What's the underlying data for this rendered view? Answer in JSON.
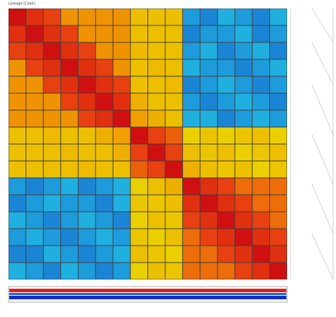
{
  "chart_data": {
    "type": "heatmap",
    "title": "Linkage (Color)",
    "colorscale": [
      [
        0,
        "#1030c0"
      ],
      [
        0.3,
        "#20b0e0"
      ],
      [
        0.5,
        "#e8e000"
      ],
      [
        0.7,
        "#f0a000"
      ],
      [
        0.85,
        "#e84010"
      ],
      [
        1,
        "#d01010"
      ]
    ],
    "values": [
      [
        1,
        0.9,
        0.85,
        0.72,
        0.72,
        0.72,
        0.72,
        0.6,
        0.6,
        0.6,
        0.25,
        0.2,
        0.3,
        0.25,
        0.2,
        0.3
      ],
      [
        0.9,
        1,
        0.9,
        0.85,
        0.72,
        0.72,
        0.72,
        0.6,
        0.6,
        0.6,
        0.2,
        0.25,
        0.25,
        0.3,
        0.2,
        0.25
      ],
      [
        0.85,
        0.9,
        1,
        0.9,
        0.85,
        0.72,
        0.72,
        0.62,
        0.6,
        0.6,
        0.25,
        0.3,
        0.2,
        0.25,
        0.3,
        0.2
      ],
      [
        0.72,
        0.85,
        0.9,
        1,
        0.9,
        0.85,
        0.72,
        0.6,
        0.62,
        0.6,
        0.3,
        0.25,
        0.25,
        0.2,
        0.25,
        0.3
      ],
      [
        0.72,
        0.72,
        0.85,
        0.9,
        1,
        0.9,
        0.85,
        0.6,
        0.6,
        0.62,
        0.2,
        0.25,
        0.3,
        0.25,
        0.2,
        0.25
      ],
      [
        0.72,
        0.72,
        0.72,
        0.85,
        0.9,
        1,
        0.9,
        0.65,
        0.6,
        0.6,
        0.25,
        0.2,
        0.25,
        0.3,
        0.25,
        0.2
      ],
      [
        0.72,
        0.72,
        0.72,
        0.72,
        0.85,
        0.9,
        1,
        0.7,
        0.65,
        0.6,
        0.3,
        0.3,
        0.2,
        0.25,
        0.3,
        0.25
      ],
      [
        0.6,
        0.6,
        0.62,
        0.6,
        0.6,
        0.65,
        0.7,
        1,
        0.85,
        0.8,
        0.55,
        0.58,
        0.55,
        0.58,
        0.6,
        0.55
      ],
      [
        0.6,
        0.6,
        0.6,
        0.62,
        0.6,
        0.6,
        0.65,
        0.85,
        1,
        0.85,
        0.6,
        0.58,
        0.6,
        0.55,
        0.58,
        0.6
      ],
      [
        0.6,
        0.6,
        0.6,
        0.6,
        0.62,
        0.6,
        0.6,
        0.8,
        0.85,
        1,
        0.65,
        0.6,
        0.58,
        0.6,
        0.55,
        0.58
      ],
      [
        0.25,
        0.2,
        0.25,
        0.3,
        0.2,
        0.25,
        0.3,
        0.55,
        0.6,
        0.65,
        1,
        0.9,
        0.85,
        0.78,
        0.78,
        0.78
      ],
      [
        0.2,
        0.25,
        0.3,
        0.25,
        0.25,
        0.2,
        0.3,
        0.58,
        0.58,
        0.6,
        0.9,
        1,
        0.9,
        0.85,
        0.78,
        0.78
      ],
      [
        0.3,
        0.25,
        0.2,
        0.25,
        0.3,
        0.25,
        0.2,
        0.55,
        0.6,
        0.58,
        0.85,
        0.9,
        1,
        0.9,
        0.85,
        0.78
      ],
      [
        0.25,
        0.3,
        0.25,
        0.2,
        0.25,
        0.3,
        0.25,
        0.58,
        0.55,
        0.6,
        0.78,
        0.85,
        0.9,
        1,
        0.9,
        0.85
      ],
      [
        0.2,
        0.2,
        0.3,
        0.25,
        0.2,
        0.25,
        0.3,
        0.6,
        0.58,
        0.55,
        0.78,
        0.78,
        0.85,
        0.9,
        1,
        0.9
      ],
      [
        0.3,
        0.25,
        0.2,
        0.3,
        0.25,
        0.2,
        0.25,
        0.55,
        0.6,
        0.58,
        0.78,
        0.78,
        0.78,
        0.85,
        0.9,
        1
      ]
    ]
  }
}
